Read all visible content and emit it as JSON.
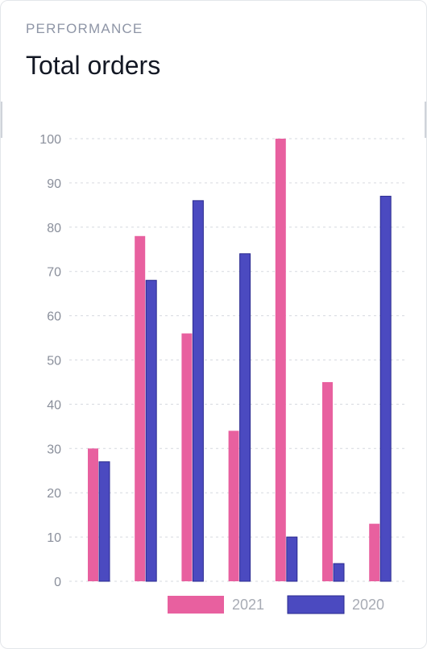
{
  "card": {
    "eyebrow": "PERFORMANCE",
    "title": "Total orders"
  },
  "colors": {
    "series_2021": "#e8609f",
    "series_2020": "#4b4ac0",
    "series_2020_edge": "#2a2a8f",
    "gridline": "#d6d9df"
  },
  "chart_data": {
    "type": "bar",
    "categories": [
      "",
      "",
      "",
      "",
      "",
      "",
      ""
    ],
    "series": [
      {
        "name": "2021",
        "values": [
          30,
          78,
          56,
          34,
          100,
          45,
          13
        ]
      },
      {
        "name": "2020",
        "values": [
          27,
          68,
          86,
          74,
          10,
          4,
          87
        ]
      }
    ],
    "yticks": [
      0,
      10,
      20,
      30,
      40,
      50,
      60,
      70,
      80,
      90,
      100
    ],
    "ylim": [
      0,
      100
    ],
    "grid": true,
    "legend": "bottom-right"
  }
}
